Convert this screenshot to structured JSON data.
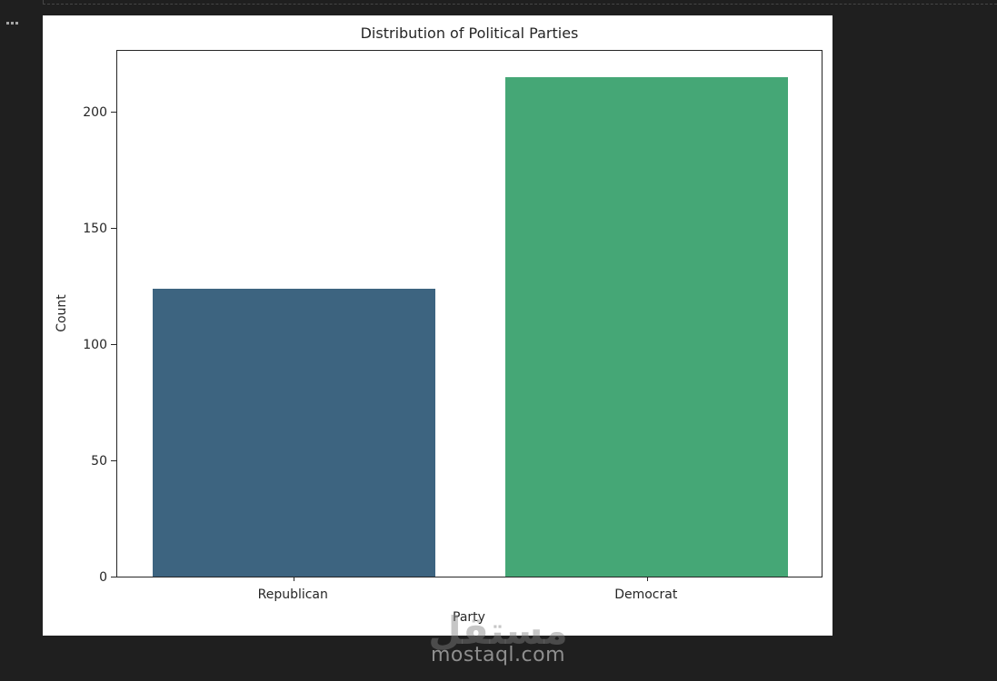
{
  "theme": {
    "canvas_background": "#1f1f1f",
    "figure_background": "#ffffff",
    "divider_color": "#464646",
    "text_color": "#262626"
  },
  "cell": {
    "options_icon": "ellipsis-icon"
  },
  "chart_data": {
    "type": "bar",
    "title": "Distribution of Political Parties",
    "xlabel": "Party",
    "ylabel": "Count",
    "categories": [
      "Republican",
      "Democrat"
    ],
    "values": [
      124,
      215
    ],
    "colors": [
      "#3d6480",
      "#45a776"
    ],
    "yticks": [
      0,
      50,
      100,
      150,
      200
    ],
    "ylim": [
      0,
      227
    ],
    "bar_width_ratio": 0.8,
    "grid": false,
    "legend": "none"
  },
  "watermark": {
    "logo_text": "مستقل",
    "site_text": "mostaql.com"
  }
}
